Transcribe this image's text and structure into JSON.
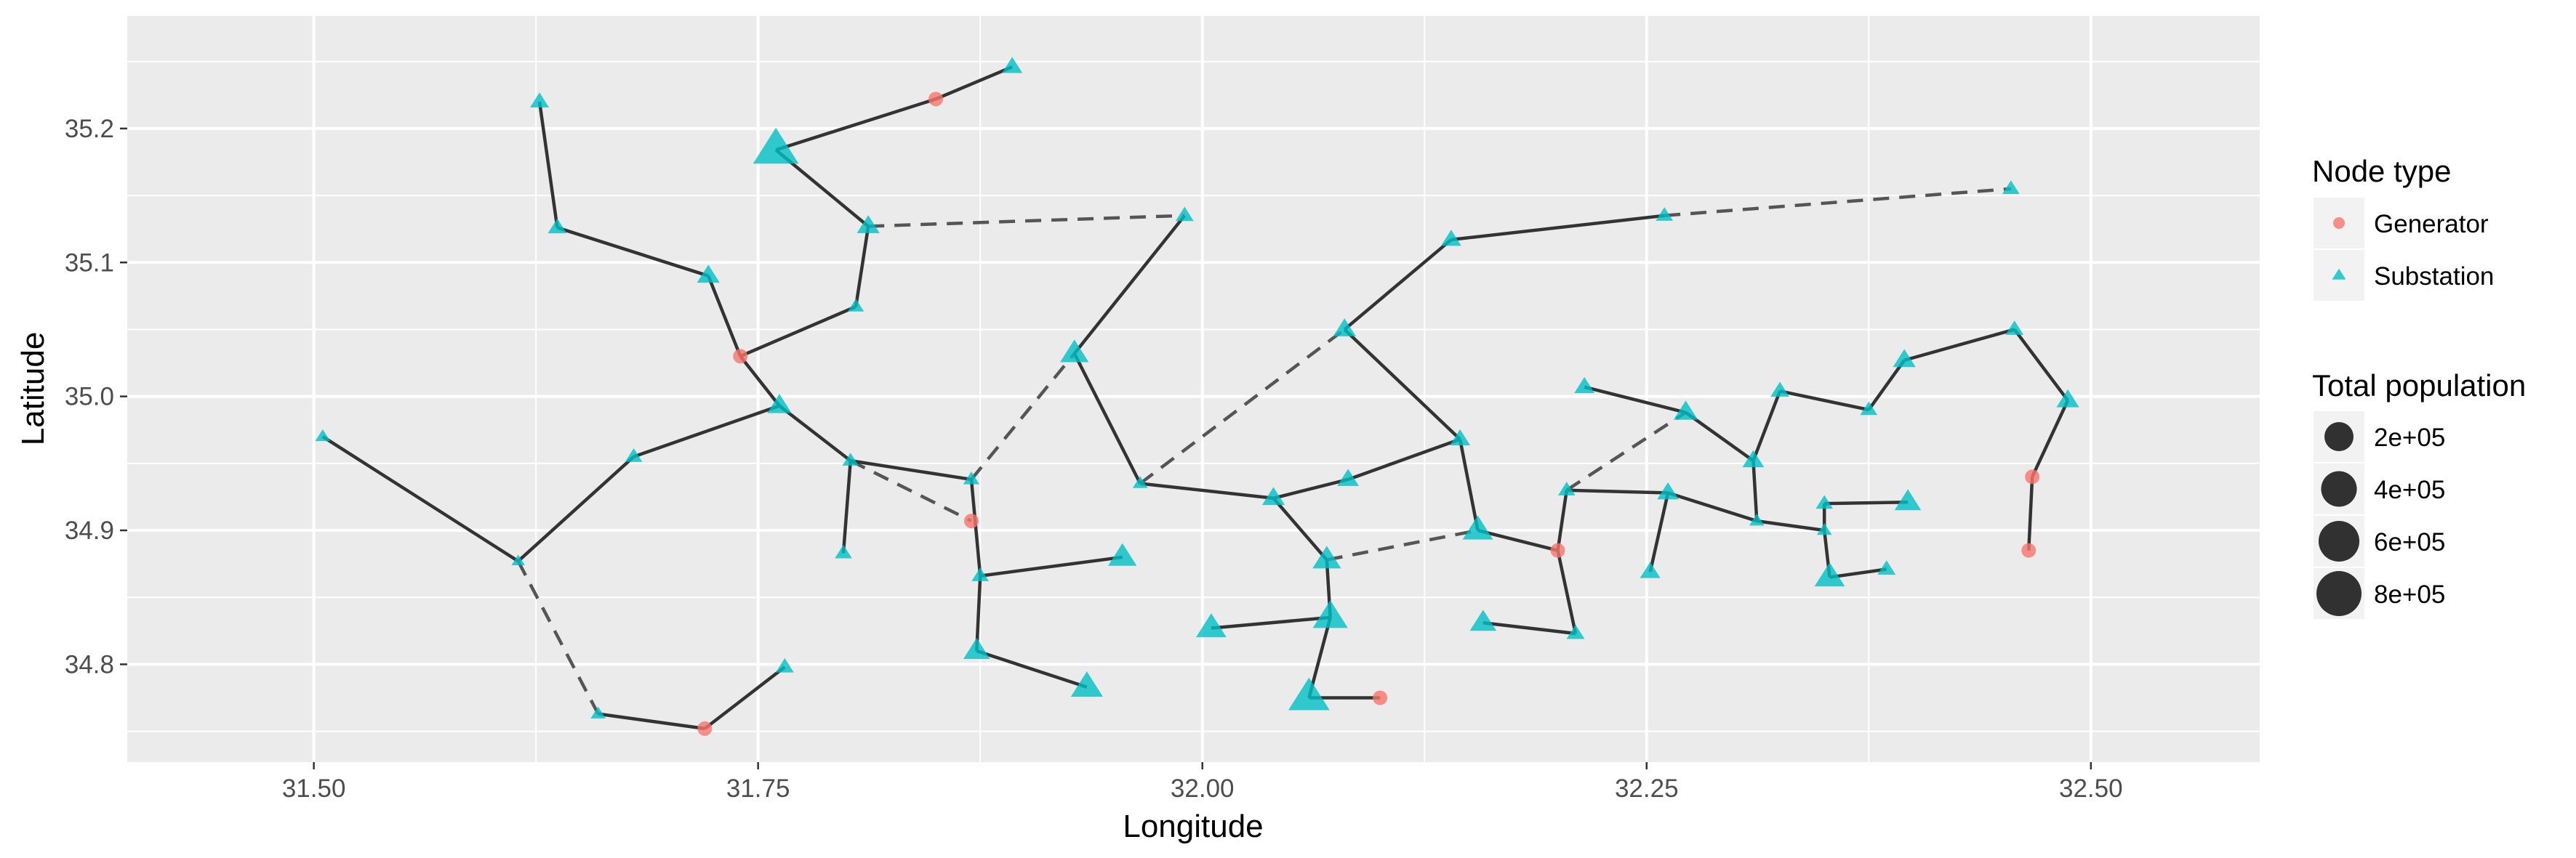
{
  "chart_data": {
    "type": "scatter",
    "title": "",
    "xlabel": "Longitude",
    "ylabel": "Latitude",
    "xlim": [
      31.395,
      32.595
    ],
    "ylim": [
      34.727,
      35.284
    ],
    "x_ticks": [
      31.5,
      31.75,
      32.0,
      32.25,
      32.5
    ],
    "x_tick_labels": [
      "31.50",
      "31.75",
      "32.00",
      "32.25",
      "32.50"
    ],
    "y_ticks": [
      34.8,
      34.9,
      35.0,
      35.1,
      35.2
    ],
    "y_tick_labels": [
      "34.8",
      "34.9",
      "35.0",
      "35.1",
      "35.2"
    ],
    "grid": true,
    "background": "#ebebeb",
    "legend": {
      "placement": "right",
      "node_type_title": "Node type",
      "node_types": [
        {
          "label": "Generator",
          "shape": "circle",
          "color": "#f8766d"
        },
        {
          "label": "Substation",
          "shape": "triangle",
          "color": "#00bfc4"
        }
      ],
      "population_title": "Total population",
      "population_sizes": [
        {
          "label": "2e+05",
          "value": 200000
        },
        {
          "label": "4e+05",
          "value": 400000
        },
        {
          "label": "6e+05",
          "value": 600000
        },
        {
          "label": "8e+05",
          "value": 800000
        }
      ]
    },
    "nodes": [
      {
        "id": 1,
        "x": 31.505,
        "y": 34.97,
        "type": "Substation",
        "pop": 20000
      },
      {
        "id": 2,
        "x": 31.615,
        "y": 34.877,
        "type": "Substation",
        "pop": 10000
      },
      {
        "id": 3,
        "x": 31.66,
        "y": 34.763,
        "type": "Substation",
        "pop": 20000
      },
      {
        "id": 4,
        "x": 31.72,
        "y": 34.752,
        "type": "Generator",
        "pop": 0
      },
      {
        "id": 5,
        "x": 31.765,
        "y": 34.798,
        "type": "Substation",
        "pop": 50000
      },
      {
        "id": 6,
        "x": 31.68,
        "y": 34.955,
        "type": "Substation",
        "pop": 40000
      },
      {
        "id": 7,
        "x": 31.762,
        "y": 34.993,
        "type": "Substation",
        "pop": 150000
      },
      {
        "id": 8,
        "x": 31.74,
        "y": 35.03,
        "type": "Generator",
        "pop": 0
      },
      {
        "id": 9,
        "x": 31.722,
        "y": 35.09,
        "type": "Substation",
        "pop": 120000
      },
      {
        "id": 10,
        "x": 31.637,
        "y": 35.126,
        "type": "Substation",
        "pop": 60000
      },
      {
        "id": 11,
        "x": 31.627,
        "y": 35.22,
        "type": "Substation",
        "pop": 60000
      },
      {
        "id": 12,
        "x": 31.805,
        "y": 35.067,
        "type": "Substation",
        "pop": 30000
      },
      {
        "id": 13,
        "x": 31.812,
        "y": 35.127,
        "type": "Substation",
        "pop": 120000
      },
      {
        "id": 14,
        "x": 31.76,
        "y": 35.184,
        "type": "Substation",
        "pop": 900000
      },
      {
        "id": 15,
        "x": 31.85,
        "y": 35.222,
        "type": "Generator",
        "pop": 0
      },
      {
        "id": 16,
        "x": 31.893,
        "y": 35.246,
        "type": "Substation",
        "pop": 80000
      },
      {
        "id": 17,
        "x": 31.99,
        "y": 35.135,
        "type": "Substation",
        "pop": 50000
      },
      {
        "id": 18,
        "x": 31.802,
        "y": 34.952,
        "type": "Substation",
        "pop": 30000
      },
      {
        "id": 19,
        "x": 31.798,
        "y": 34.883,
        "type": "Substation",
        "pop": 40000
      },
      {
        "id": 20,
        "x": 31.87,
        "y": 34.938,
        "type": "Substation",
        "pop": 30000
      },
      {
        "id": 21,
        "x": 31.87,
        "y": 34.907,
        "type": "Generator",
        "pop": 0
      },
      {
        "id": 22,
        "x": 31.875,
        "y": 34.866,
        "type": "Substation",
        "pop": 40000
      },
      {
        "id": 23,
        "x": 31.873,
        "y": 34.81,
        "type": "Substation",
        "pop": 200000
      },
      {
        "id": 24,
        "x": 31.935,
        "y": 34.783,
        "type": "Substation",
        "pop": 350000
      },
      {
        "id": 25,
        "x": 31.928,
        "y": 35.032,
        "type": "Substation",
        "pop": 250000
      },
      {
        "id": 26,
        "x": 31.965,
        "y": 34.935,
        "type": "Substation",
        "pop": 20000
      },
      {
        "id": 27,
        "x": 31.955,
        "y": 34.88,
        "type": "Substation",
        "pop": 250000
      },
      {
        "id": 28,
        "x": 32.08,
        "y": 35.05,
        "type": "Substation",
        "pop": 120000
      },
      {
        "id": 29,
        "x": 32.14,
        "y": 35.117,
        "type": "Substation",
        "pop": 80000
      },
      {
        "id": 30,
        "x": 32.26,
        "y": 35.135,
        "type": "Substation",
        "pop": 40000
      },
      {
        "id": 31,
        "x": 32.455,
        "y": 35.155,
        "type": "Substation",
        "pop": 40000
      },
      {
        "id": 32,
        "x": 32.04,
        "y": 34.924,
        "type": "Substation",
        "pop": 120000
      },
      {
        "id": 33,
        "x": 32.082,
        "y": 34.938,
        "type": "Substation",
        "pop": 100000
      },
      {
        "id": 34,
        "x": 32.145,
        "y": 34.968,
        "type": "Substation",
        "pop": 80000
      },
      {
        "id": 35,
        "x": 32.07,
        "y": 34.878,
        "type": "Substation",
        "pop": 250000
      },
      {
        "id": 36,
        "x": 32.072,
        "y": 34.835,
        "type": "Substation",
        "pop": 450000
      },
      {
        "id": 37,
        "x": 32.005,
        "y": 34.827,
        "type": "Substation",
        "pop": 300000
      },
      {
        "id": 38,
        "x": 32.06,
        "y": 34.775,
        "type": "Substation",
        "pop": 700000
      },
      {
        "id": 39,
        "x": 32.1,
        "y": 34.775,
        "type": "Generator",
        "pop": 0
      },
      {
        "id": 40,
        "x": 32.155,
        "y": 34.9,
        "type": "Substation",
        "pop": 300000
      },
      {
        "id": 41,
        "x": 32.158,
        "y": 34.831,
        "type": "Substation",
        "pop": 200000
      },
      {
        "id": 42,
        "x": 32.21,
        "y": 34.823,
        "type": "Substation",
        "pop": 50000
      },
      {
        "id": 43,
        "x": 32.2,
        "y": 34.885,
        "type": "Generator",
        "pop": 0
      },
      {
        "id": 44,
        "x": 32.205,
        "y": 34.93,
        "type": "Substation",
        "pop": 40000
      },
      {
        "id": 45,
        "x": 32.252,
        "y": 34.869,
        "type": "Substation",
        "pop": 80000
      },
      {
        "id": 46,
        "x": 32.262,
        "y": 34.928,
        "type": "Substation",
        "pop": 100000
      },
      {
        "id": 47,
        "x": 32.215,
        "y": 35.007,
        "type": "Substation",
        "pop": 80000
      },
      {
        "id": 48,
        "x": 32.272,
        "y": 34.988,
        "type": "Substation",
        "pop": 150000
      },
      {
        "id": 49,
        "x": 32.31,
        "y": 34.952,
        "type": "Substation",
        "pop": 100000
      },
      {
        "id": 50,
        "x": 32.312,
        "y": 34.907,
        "type": "Substation",
        "pop": 20000
      },
      {
        "id": 51,
        "x": 32.325,
        "y": 35.004,
        "type": "Substation",
        "pop": 60000
      },
      {
        "id": 52,
        "x": 32.35,
        "y": 34.9,
        "type": "Substation",
        "pop": 20000
      },
      {
        "id": 53,
        "x": 32.35,
        "y": 34.92,
        "type": "Substation",
        "pop": 40000
      },
      {
        "id": 54,
        "x": 32.353,
        "y": 34.865,
        "type": "Substation",
        "pop": 300000
      },
      {
        "id": 55,
        "x": 32.385,
        "y": 34.871,
        "type": "Substation",
        "pop": 50000
      },
      {
        "id": 56,
        "x": 32.397,
        "y": 34.921,
        "type": "Substation",
        "pop": 200000
      },
      {
        "id": 57,
        "x": 32.375,
        "y": 34.99,
        "type": "Substation",
        "pop": 40000
      },
      {
        "id": 58,
        "x": 32.395,
        "y": 35.027,
        "type": "Substation",
        "pop": 120000
      },
      {
        "id": 59,
        "x": 32.457,
        "y": 35.05,
        "type": "Substation",
        "pop": 50000
      },
      {
        "id": 60,
        "x": 32.487,
        "y": 34.997,
        "type": "Substation",
        "pop": 120000
      },
      {
        "id": 61,
        "x": 32.467,
        "y": 34.94,
        "type": "Generator",
        "pop": 0
      },
      {
        "id": 62,
        "x": 32.465,
        "y": 34.885,
        "type": "Generator",
        "pop": 0
      }
    ],
    "edges_solid": [
      [
        1,
        2
      ],
      [
        2,
        6
      ],
      [
        6,
        7
      ],
      [
        3,
        4
      ],
      [
        4,
        5
      ],
      [
        7,
        8
      ],
      [
        8,
        9
      ],
      [
        9,
        10
      ],
      [
        10,
        11
      ],
      [
        8,
        12
      ],
      [
        12,
        13
      ],
      [
        13,
        14
      ],
      [
        14,
        15
      ],
      [
        15,
        16
      ],
      [
        7,
        18
      ],
      [
        18,
        19
      ],
      [
        18,
        20
      ],
      [
        20,
        22
      ],
      [
        22,
        27
      ],
      [
        22,
        23
      ],
      [
        23,
        24
      ],
      [
        25,
        17
      ],
      [
        25,
        26
      ],
      [
        26,
        32
      ],
      [
        32,
        33
      ],
      [
        33,
        34
      ],
      [
        34,
        28
      ],
      [
        28,
        29
      ],
      [
        29,
        30
      ],
      [
        34,
        40
      ],
      [
        32,
        35
      ],
      [
        35,
        36
      ],
      [
        36,
        37
      ],
      [
        36,
        38
      ],
      [
        38,
        39
      ],
      [
        40,
        43
      ],
      [
        43,
        44
      ],
      [
        43,
        42
      ],
      [
        42,
        41
      ],
      [
        44,
        46
      ],
      [
        46,
        45
      ],
      [
        46,
        50
      ],
      [
        50,
        49
      ],
      [
        49,
        48
      ],
      [
        48,
        47
      ],
      [
        49,
        51
      ],
      [
        51,
        57
      ],
      [
        57,
        58
      ],
      [
        58,
        59
      ],
      [
        59,
        60
      ],
      [
        60,
        61
      ],
      [
        61,
        62
      ],
      [
        50,
        52
      ],
      [
        52,
        53
      ],
      [
        53,
        56
      ],
      [
        52,
        54
      ],
      [
        54,
        55
      ]
    ],
    "edges_dashed": [
      [
        2,
        3
      ],
      [
        13,
        17
      ],
      [
        18,
        21
      ],
      [
        20,
        25
      ],
      [
        26,
        28
      ],
      [
        30,
        31
      ],
      [
        35,
        40
      ],
      [
        44,
        48
      ]
    ]
  }
}
